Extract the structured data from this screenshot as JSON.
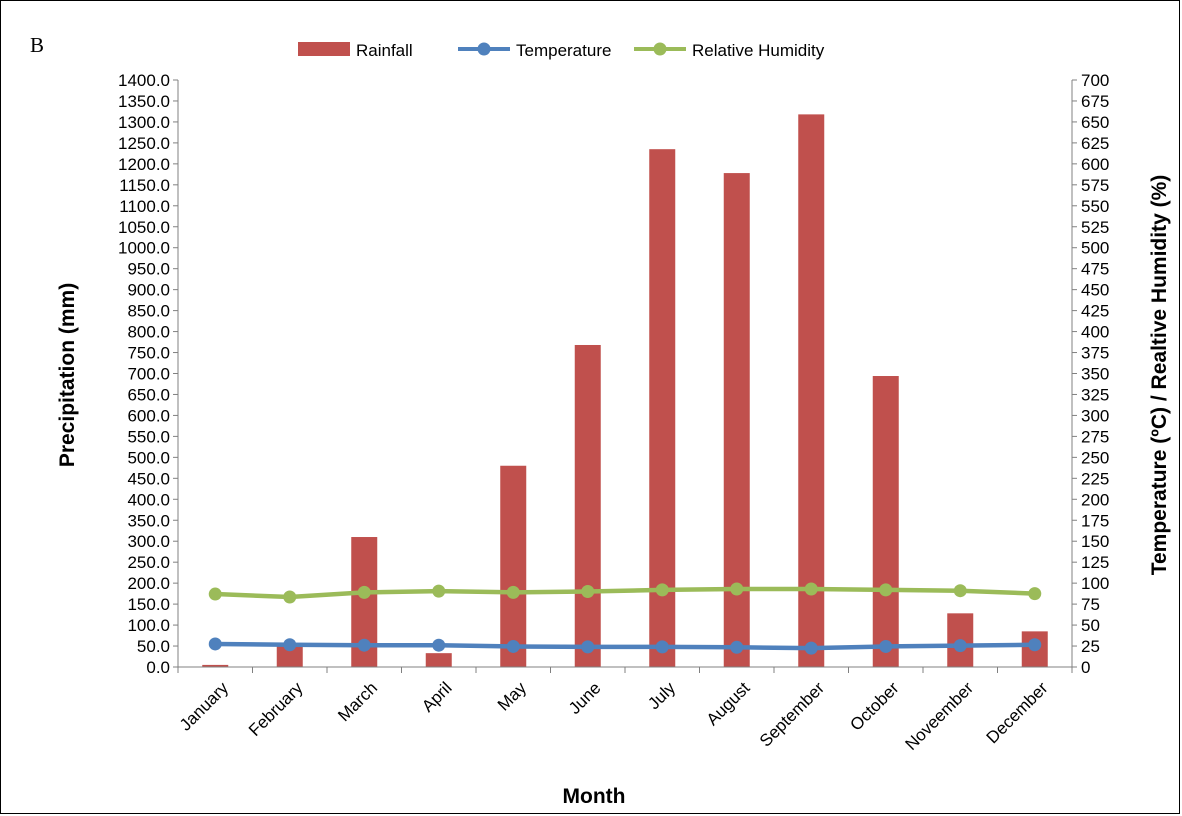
{
  "panel_label": "B",
  "chart_data": {
    "type": "bar",
    "categories": [
      "January",
      "February",
      "March",
      "April",
      "May",
      "June",
      "July",
      "August",
      "September",
      "October",
      "Noveember",
      "December"
    ],
    "series": [
      {
        "name": "Rainfall",
        "type": "bar",
        "axis": "left",
        "color": "#c0504d",
        "values": [
          5,
          55,
          310,
          33,
          480,
          768,
          1235,
          1178,
          1318,
          694,
          128,
          85
        ]
      },
      {
        "name": "Temperature",
        "type": "line",
        "axis": "right",
        "color": "#4f81bd",
        "values": [
          27.5,
          26.5,
          26.0,
          26.0,
          24.5,
          24.0,
          24.0,
          23.5,
          22.5,
          24.5,
          25.5,
          26.5
        ]
      },
      {
        "name": "Relative Humidity",
        "type": "line",
        "axis": "right",
        "color": "#9bbb59",
        "values": [
          87,
          83.5,
          89,
          90.5,
          89,
          90,
          92,
          93,
          93,
          92,
          91,
          87.5
        ]
      }
    ],
    "xlabel": "Month",
    "ylabel": "Precipitation (mm)",
    "y2label": "Temperature (ºC) / Realtive Humidity (%)",
    "ylim": [
      0,
      1400
    ],
    "y2lim": [
      0,
      700
    ],
    "y_ticks": [
      "0.0",
      "50.0",
      "100.0",
      "150.0",
      "200.0",
      "250.0",
      "300.0",
      "350.0",
      "400.0",
      "450.0",
      "500.0",
      "550.0",
      "600.0",
      "650.0",
      "700.0",
      "750.0",
      "800.0",
      "850.0",
      "900.0",
      "950.0",
      "1000.0",
      "1050.0",
      "1100.0",
      "1150.0",
      "1200.0",
      "1250.0",
      "1300.0",
      "1350.0",
      "1400.0"
    ],
    "y2_ticks": [
      "0",
      "25",
      "50",
      "75",
      "100",
      "125",
      "150",
      "175",
      "200",
      "225",
      "250",
      "275",
      "300",
      "325",
      "350",
      "375",
      "400",
      "425",
      "450",
      "475",
      "500",
      "525",
      "550",
      "575",
      "600",
      "625",
      "650",
      "675",
      "700"
    ],
    "grid": false,
    "legend_position": "top"
  }
}
